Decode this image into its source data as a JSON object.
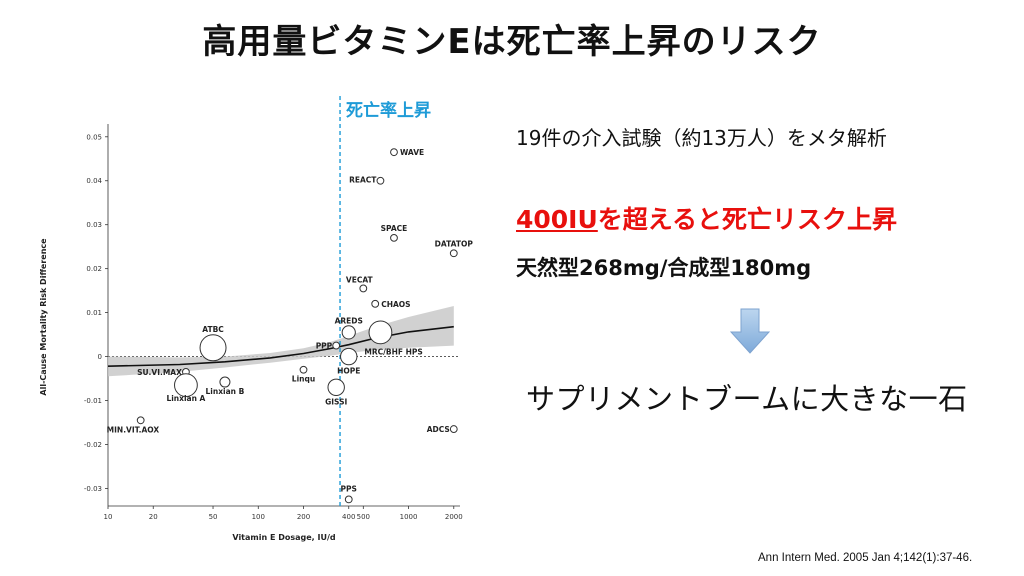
{
  "title": "高用量ビタミンEは死亡率上昇のリスク",
  "summary": "19件の介入試験（約13万人）をメタ解析",
  "highlight": {
    "underlined": "400IU",
    "rest": "を超えると死亡リスク上昇"
  },
  "types": "天然型268mg/合成型180mg",
  "conclusion": "サプリメントブームに大きな一石",
  "citation": "Ann Intern Med. 2005 Jan 4;142(1):37-46.",
  "arrow_icon": "down-arrow-icon",
  "marker": {
    "label": "死亡率上昇",
    "x": 350,
    "color": "#1e9bd7"
  },
  "chart_data": {
    "type": "scatter",
    "xscale": "log",
    "xlabel": "Vitamin E Dosage, IU/d",
    "ylabel": "All-Cause Mortality Risk Difference",
    "xticks": [
      10,
      20,
      50,
      100,
      200,
      400,
      500,
      1000,
      2000
    ],
    "xtick_labels": [
      "10",
      "20",
      "50",
      "100",
      "200",
      "400",
      "500",
      "1000",
      "2000"
    ],
    "yticks": [
      0.05,
      0.04,
      0.03,
      0.02,
      0.01,
      0,
      -0.01,
      -0.02,
      -0.03
    ],
    "ytick_labels": [
      "0.05",
      "0.04",
      "0.03",
      "0.02",
      "0.01",
      "0",
      "-0.01",
      "-0.02",
      "-0.03"
    ],
    "xlim": [
      10,
      2200
    ],
    "ylim": [
      -0.034,
      0.052
    ],
    "points": [
      {
        "name": "WAVE",
        "x": 800,
        "y": 0.0465,
        "size": 1
      },
      {
        "name": "REACT",
        "x": 650,
        "y": 0.04,
        "size": 1
      },
      {
        "name": "SPACE",
        "x": 800,
        "y": 0.027,
        "size": 1
      },
      {
        "name": "DATATOP",
        "x": 2000,
        "y": 0.0235,
        "size": 1
      },
      {
        "name": "VECAT",
        "x": 500,
        "y": 0.0155,
        "size": 1
      },
      {
        "name": "CHAOS",
        "x": 600,
        "y": 0.012,
        "size": 1
      },
      {
        "name": "AREDS",
        "x": 400,
        "y": 0.0055,
        "size": 3
      },
      {
        "name": "PPP",
        "x": 330,
        "y": 0.0025,
        "size": 1
      },
      {
        "name": "MRC/BHF HPS",
        "x": 650,
        "y": 0.0055,
        "size": 6
      },
      {
        "name": "HOPE",
        "x": 400,
        "y": 0.0,
        "size": 4
      },
      {
        "name": "ATBC",
        "x": 50,
        "y": 0.002,
        "size": 7
      },
      {
        "name": "SU.VI.MAX",
        "x": 33,
        "y": -0.0035,
        "size": 1
      },
      {
        "name": "Linxian A",
        "x": 33,
        "y": -0.0065,
        "size": 6
      },
      {
        "name": "Linxian B",
        "x": 60,
        "y": -0.0058,
        "size": 2
      },
      {
        "name": "Linqu",
        "x": 200,
        "y": -0.003,
        "size": 1
      },
      {
        "name": "GISSI",
        "x": 330,
        "y": -0.007,
        "size": 4
      },
      {
        "name": "MIN.VIT.AOX",
        "x": 16.5,
        "y": -0.0145,
        "size": 1
      },
      {
        "name": "ADCS",
        "x": 2000,
        "y": -0.0165,
        "size": 1
      },
      {
        "name": "PPS",
        "x": 400,
        "y": -0.0325,
        "size": 1
      }
    ],
    "fit_line": [
      [
        10,
        -0.0022
      ],
      [
        30,
        -0.0018
      ],
      [
        60,
        -0.0012
      ],
      [
        120,
        -0.0003
      ],
      [
        200,
        0.0007
      ],
      [
        300,
        0.0018
      ],
      [
        400,
        0.0027
      ],
      [
        600,
        0.0042
      ],
      [
        1000,
        0.0056
      ],
      [
        2000,
        0.0068
      ]
    ],
    "ci_band": [
      [
        10,
        -0.0045,
        0.0
      ],
      [
        30,
        -0.0035,
        -0.0002
      ],
      [
        60,
        -0.0025,
        0.0
      ],
      [
        120,
        -0.0014,
        0.0008
      ],
      [
        200,
        -0.0005,
        0.0019
      ],
      [
        300,
        0.0002,
        0.0033
      ],
      [
        400,
        0.0008,
        0.0047
      ],
      [
        600,
        0.0015,
        0.0068
      ],
      [
        1000,
        0.002,
        0.009
      ],
      [
        2000,
        0.0025,
        0.0115
      ]
    ]
  }
}
